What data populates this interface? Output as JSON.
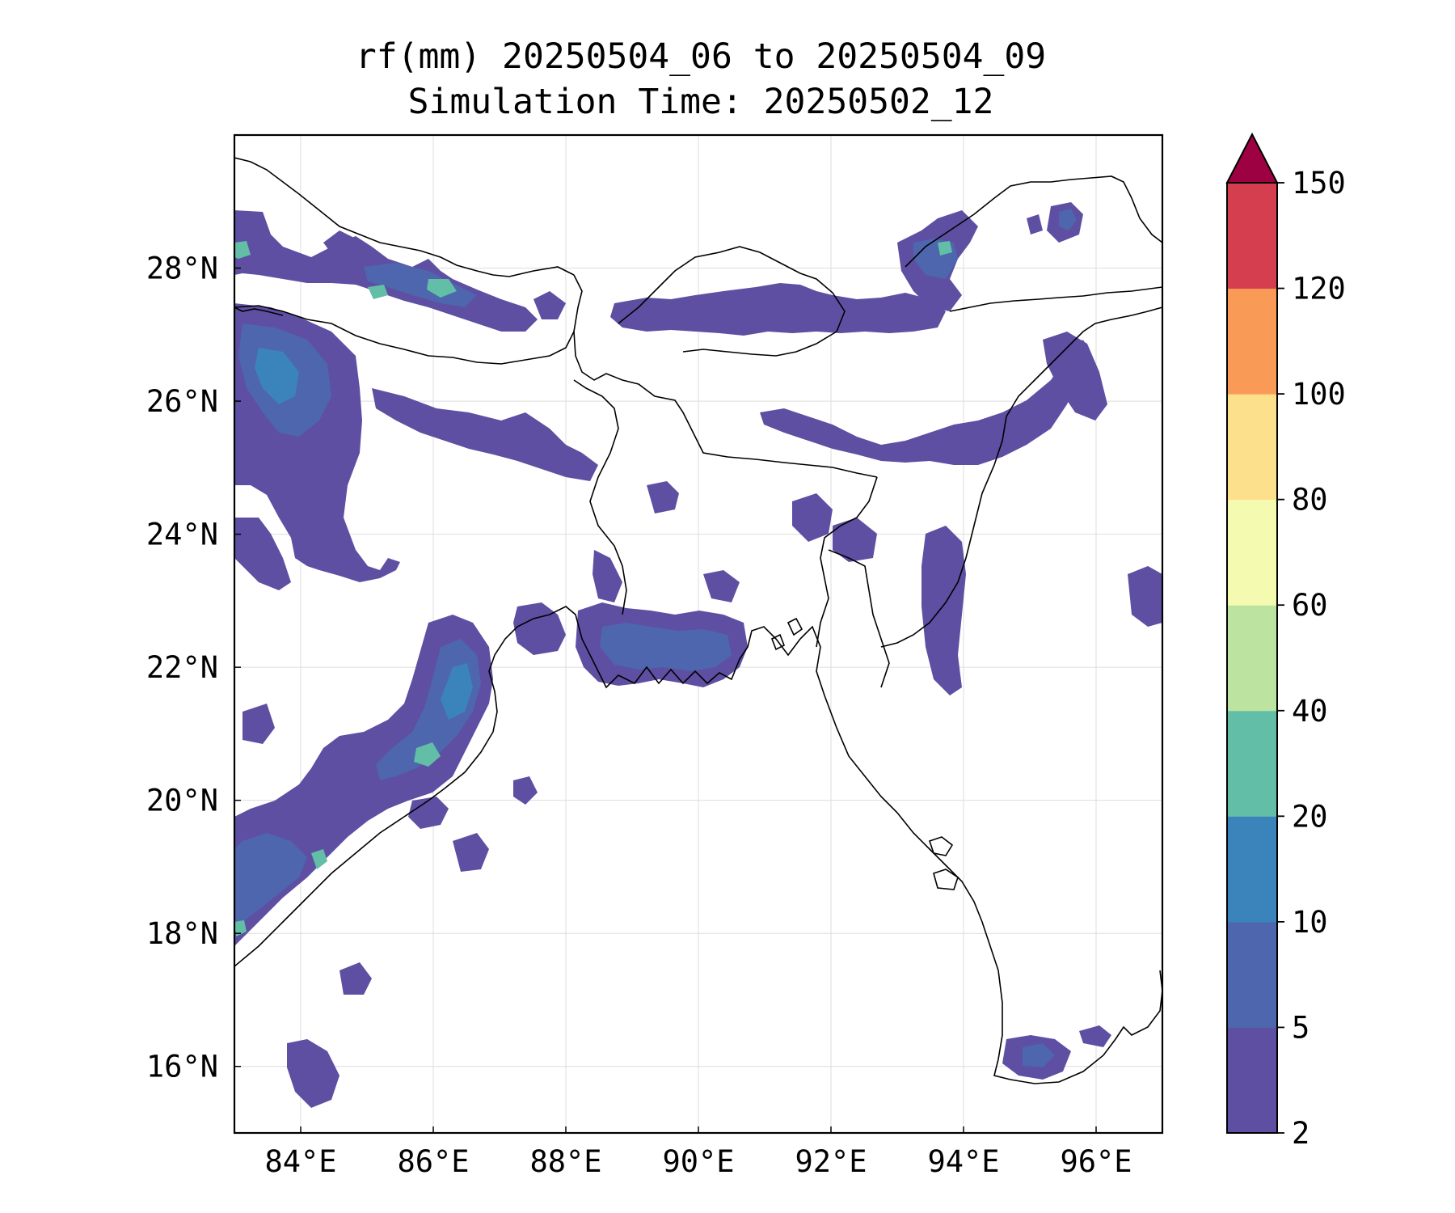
{
  "title": {
    "line1": "rf(mm) 20250504_06 to 20250504_09",
    "line2": "Simulation Time: 20250502_12"
  },
  "map": {
    "lon_range": [
      83,
      97
    ],
    "lat_range": [
      15,
      30
    ],
    "x_ticks": [
      {
        "value": 84,
        "label": "84°E"
      },
      {
        "value": 86,
        "label": "86°E"
      },
      {
        "value": 88,
        "label": "88°E"
      },
      {
        "value": 90,
        "label": "90°E"
      },
      {
        "value": 92,
        "label": "92°E"
      },
      {
        "value": 94,
        "label": "94°E"
      },
      {
        "value": 96,
        "label": "96°E"
      }
    ],
    "y_ticks": [
      {
        "value": 16,
        "label": "16°N"
      },
      {
        "value": 18,
        "label": "18°N"
      },
      {
        "value": 20,
        "label": "20°N"
      },
      {
        "value": 22,
        "label": "22°N"
      },
      {
        "value": 24,
        "label": "24°N"
      },
      {
        "value": 26,
        "label": "26°N"
      },
      {
        "value": 28,
        "label": "28°N"
      }
    ],
    "gridlines": true
  },
  "colorbar": {
    "extend": "max",
    "extend_color": "#9e0142",
    "levels": [
      {
        "label": "2",
        "color": "#5e4fa2"
      },
      {
        "label": "5",
        "color": "#4d66ad"
      },
      {
        "label": "10",
        "color": "#3b84bb"
      },
      {
        "label": "20",
        "color": "#62bea6"
      },
      {
        "label": "40",
        "color": "#bde3a0"
      },
      {
        "label": "60",
        "color": "#f4fbb0"
      },
      {
        "label": "80",
        "color": "#fde08b"
      },
      {
        "label": "100",
        "color": "#f99b57"
      },
      {
        "label": "120",
        "color": "#d53e4f"
      },
      {
        "label": "150",
        "color": ""
      }
    ]
  }
}
